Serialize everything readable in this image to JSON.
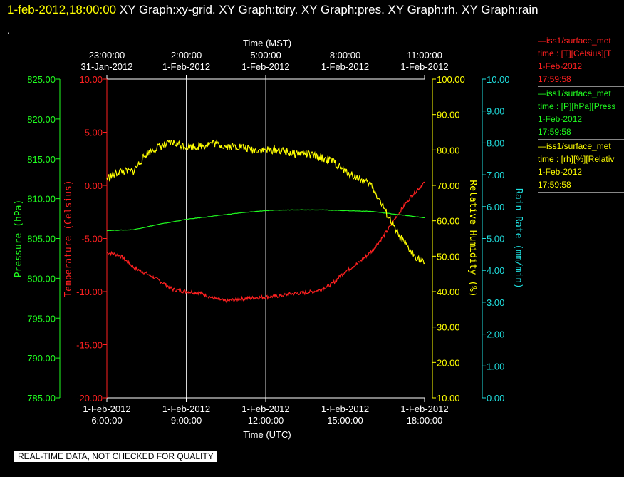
{
  "header": {
    "timestamp": "1-feb-2012,18:00:00",
    "graph_list": "XY Graph:xy-grid.  XY Graph:tdry.  XY Graph:pres.  XY Graph:rh.  XY Graph:rain",
    "dot": "."
  },
  "footer": {
    "qc_note": "REAL-TIME DATA, NOT CHECKED FOR QUALITY"
  },
  "legend": [
    {
      "line1": "—iss1/surface_met",
      "line2": "time : [T][Celsius][T",
      "line3": "1-Feb-2012",
      "line4": "17:59:58",
      "color": "#ff2020"
    },
    {
      "line1": "—iss1/surface_met",
      "line2": "time : [P][hPa][Press",
      "line3": "1-Feb-2012",
      "line4": "17:59:58",
      "color": "#20ff20"
    },
    {
      "line1": "—iss1/surface_met",
      "line2": "time : [rh][%][Relativ",
      "line3": "1-Feb-2012",
      "line4": "17:59:58",
      "color": "#ffff00"
    }
  ],
  "chart_data": {
    "type": "line",
    "x_unit": "hours since 1-Feb-2012 00:00 UTC",
    "xlim": [
      6,
      18
    ],
    "bottom_axis": {
      "label": "Time (UTC)",
      "ticks": [
        {
          "value": 6,
          "line1": "1-Feb-2012",
          "line2": "6:00:00"
        },
        {
          "value": 9,
          "line1": "1-Feb-2012",
          "line2": "9:00:00"
        },
        {
          "value": 12,
          "line1": "1-Feb-2012",
          "line2": "12:00:00"
        },
        {
          "value": 15,
          "line1": "1-Feb-2012",
          "line2": "15:00:00"
        },
        {
          "value": 18,
          "line1": "1-Feb-2012",
          "line2": "18:00:00"
        }
      ]
    },
    "top_axis": {
      "label": "Time (MST)",
      "ticks": [
        {
          "value": 6,
          "line1": "23:00:00",
          "line2": "31-Jan-2012"
        },
        {
          "value": 9,
          "line1": "2:00:00",
          "line2": "1-Feb-2012"
        },
        {
          "value": 12,
          "line1": "5:00:00",
          "line2": "1-Feb-2012"
        },
        {
          "value": 15,
          "line1": "8:00:00",
          "line2": "1-Feb-2012"
        },
        {
          "value": 18,
          "line1": "11:00:00",
          "line2": "1-Feb-2012"
        }
      ]
    },
    "grid": "vertical",
    "axes": {
      "pressure": {
        "label": "Pressure (hPa)",
        "range": [
          785,
          825
        ],
        "step": 5,
        "color": "#20ff20"
      },
      "temperature": {
        "label": "Temperature (Celsius)",
        "range": [
          -20,
          10
        ],
        "step": 5,
        "color": "#ff2020"
      },
      "rh": {
        "label": "Relative Humidity (%)",
        "range": [
          10,
          100
        ],
        "step": 10,
        "color": "#ffff00"
      },
      "rain": {
        "label": "Rain Rate (mm/min)",
        "range": [
          0,
          10
        ],
        "step": 1,
        "color": "#20e0e0"
      }
    },
    "series": [
      {
        "axis": "temperature",
        "color": "#ff2020",
        "points": [
          [
            6,
            -6.3
          ],
          [
            6.5,
            -6.6
          ],
          [
            7,
            -7.7
          ],
          [
            7.5,
            -8.3
          ],
          [
            8,
            -9.0
          ],
          [
            8.5,
            -9.8
          ],
          [
            9,
            -10.0
          ],
          [
            9.5,
            -10.1
          ],
          [
            10,
            -10.6
          ],
          [
            10.5,
            -10.9
          ],
          [
            11,
            -10.7
          ],
          [
            11.5,
            -10.6
          ],
          [
            12,
            -10.5
          ],
          [
            12.5,
            -10.4
          ],
          [
            13,
            -10.2
          ],
          [
            13.5,
            -10.1
          ],
          [
            14,
            -9.9
          ],
          [
            14.5,
            -9.3
          ],
          [
            15,
            -8.1
          ],
          [
            15.5,
            -7.3
          ],
          [
            16,
            -6.2
          ],
          [
            16.5,
            -4.6
          ],
          [
            17,
            -2.7
          ],
          [
            17.5,
            -1.0
          ],
          [
            18,
            0.3
          ]
        ]
      },
      {
        "axis": "pressure",
        "color": "#20ff20",
        "points": [
          [
            6,
            806.0
          ],
          [
            7,
            806.1
          ],
          [
            8,
            806.8
          ],
          [
            9,
            807.4
          ],
          [
            10,
            807.8
          ],
          [
            11,
            808.2
          ],
          [
            12,
            808.5
          ],
          [
            13,
            808.6
          ],
          [
            14,
            808.6
          ],
          [
            15,
            808.5
          ],
          [
            16,
            808.4
          ],
          [
            17,
            808.0
          ],
          [
            18,
            807.6
          ]
        ]
      },
      {
        "axis": "rh",
        "color": "#ffff00",
        "points": [
          [
            6,
            72
          ],
          [
            6.5,
            74
          ],
          [
            7,
            74
          ],
          [
            7.5,
            79
          ],
          [
            8,
            81
          ],
          [
            8.5,
            82
          ],
          [
            9,
            81
          ],
          [
            9.5,
            81
          ],
          [
            10,
            82
          ],
          [
            10.5,
            81
          ],
          [
            11,
            81
          ],
          [
            11.5,
            80
          ],
          [
            12,
            80
          ],
          [
            12.5,
            80
          ],
          [
            13,
            79
          ],
          [
            13.5,
            79
          ],
          [
            14,
            78
          ],
          [
            14.5,
            77
          ],
          [
            15,
            74
          ],
          [
            15.5,
            72
          ],
          [
            16,
            70
          ],
          [
            16.5,
            63
          ],
          [
            17,
            56
          ],
          [
            17.5,
            51
          ],
          [
            18,
            48
          ]
        ]
      }
    ]
  }
}
